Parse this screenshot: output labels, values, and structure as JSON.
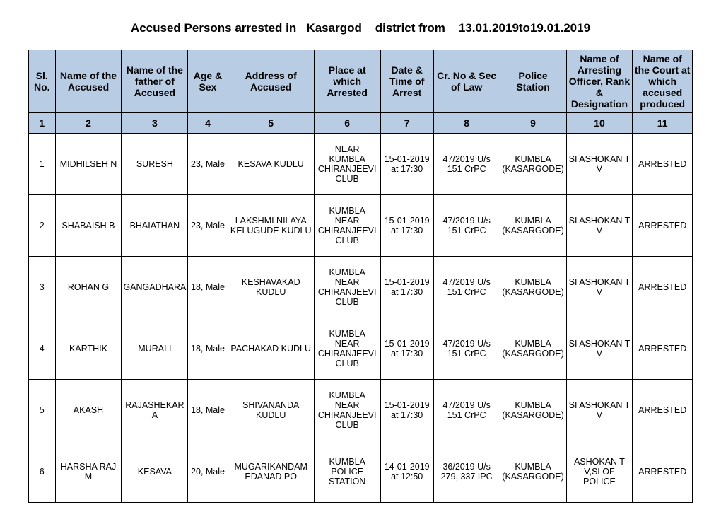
{
  "title": "Accused Persons arrested in   Kasargod    district from    13.01.2019to19.01.2019",
  "columns": [
    "Sl. No.",
    "Name of the Accused",
    "Name of the father of Accused",
    "Age & Sex",
    "Address of Accused",
    "Place at which Arrested",
    "Date & Time of Arrest",
    "Cr. No & Sec of Law",
    "Police Station",
    "Name of Arresting Officer, Rank & Designation",
    "Name of the Court at which accused produced"
  ],
  "numrow": [
    "1",
    "2",
    "3",
    "4",
    "5",
    "6",
    "7",
    "8",
    "9",
    "10",
    "11"
  ],
  "rows": [
    {
      "c1": "1",
      "c2": "MIDHILSEH N",
      "c3": "SURESH",
      "c4": "23, Male",
      "c5": "KESAVA KUDLU",
      "c6": "NEAR KUMBLA CHIRANJEEVI CLUB",
      "c7": "15-01-2019 at 17:30",
      "c8": "47/2019 U/s 151 CrPC",
      "c9": "KUMBLA (KASARGODE)",
      "c10": "SI ASHOKAN T V",
      "c11": "ARRESTED"
    },
    {
      "c1": "2",
      "c2": "SHABAISH B",
      "c3": "BHAIATHAN",
      "c4": "23, Male",
      "c5": "LAKSHMI NILAYA KELUGUDE KUDLU",
      "c6": "KUMBLA NEAR CHIRANJEEVI CLUB",
      "c7": "15-01-2019 at 17:30",
      "c8": "47/2019 U/s 151 CrPC",
      "c9": "KUMBLA (KASARGODE)",
      "c10": "SI ASHOKAN T V",
      "c11": "ARRESTED"
    },
    {
      "c1": "3",
      "c2": "ROHAN G",
      "c3": "GANGADHARA",
      "c4": "18, Male",
      "c5": "KESHAVAKAD KUDLU",
      "c6": "KUMBLA NEAR CHIRANJEEVI CLUB",
      "c7": "15-01-2019 at 17:30",
      "c8": "47/2019 U/s 151 CrPC",
      "c9": "KUMBLA (KASARGODE)",
      "c10": "SI ASHOKAN T V",
      "c11": "ARRESTED"
    },
    {
      "c1": "4",
      "c2": "KARTHIK",
      "c3": "MURALI",
      "c4": "18, Male",
      "c5": "PACHAKAD KUDLU",
      "c6": "KUMBLA NEAR CHIRANJEEVI CLUB",
      "c7": "15-01-2019 at 17:30",
      "c8": "47/2019 U/s 151 CrPC",
      "c9": "KUMBLA (KASARGODE)",
      "c10": "SI ASHOKAN T V",
      "c11": "ARRESTED"
    },
    {
      "c1": "5",
      "c2": "AKASH",
      "c3": "RAJASHEKARA",
      "c4": "18, Male",
      "c5": "SHIVANANDA KUDLU",
      "c6": "KUMBLA NEAR CHIRANJEEVI CLUB",
      "c7": "15-01-2019 at 17:30",
      "c8": "47/2019 U/s 151 CrPC",
      "c9": "KUMBLA (KASARGODE)",
      "c10": "SI ASHOKAN T V",
      "c11": "ARRESTED"
    },
    {
      "c1": "6",
      "c2": "HARSHA RAJ M",
      "c3": "KESAVA",
      "c4": "20, Male",
      "c5": "MUGARIKANDAM EDANAD PO",
      "c6": "KUMBLA POLICE STATION",
      "c7": "14-01-2019 at 12:50",
      "c8": "36/2019 U/s 279, 337 IPC",
      "c9": "KUMBLA (KASARGODE)",
      "c10": "ASHOKAN T V,SI OF POLICE",
      "c11": "ARRESTED"
    }
  ]
}
